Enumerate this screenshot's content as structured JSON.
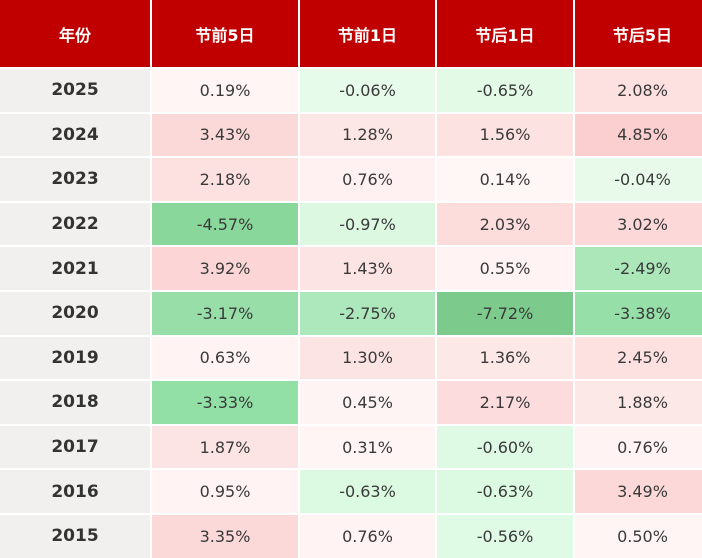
{
  "table": {
    "headers": [
      "年份",
      "节前5日",
      "节前1日",
      "节后1日",
      "节后5日"
    ],
    "rows": [
      {
        "year": "2025",
        "values": [
          "0.19%",
          "-0.06%",
          "-0.65%",
          "2.08%"
        ],
        "colors": [
          "#fff5f5",
          "#e6fbe9",
          "#e3fae7",
          "#fde0e0"
        ]
      },
      {
        "year": "2024",
        "values": [
          "3.43%",
          "1.28%",
          "1.56%",
          "4.85%"
        ],
        "colors": [
          "#fcd9d9",
          "#fde6e6",
          "#fde2e2",
          "#fbcfcf"
        ]
      },
      {
        "year": "2023",
        "values": [
          "2.18%",
          "0.76%",
          "0.14%",
          "-0.04%"
        ],
        "colors": [
          "#fde0e0",
          "#fff1f1",
          "#fff6f6",
          "#e8fbeb"
        ]
      },
      {
        "year": "2022",
        "values": [
          "-4.57%",
          "-0.97%",
          "2.03%",
          "3.02%"
        ],
        "colors": [
          "#8ad79c",
          "#dcf8e1",
          "#fddcdc",
          "#fcd8d8"
        ]
      },
      {
        "year": "2021",
        "values": [
          "3.92%",
          "1.43%",
          "0.55%",
          "-2.49%"
        ],
        "colors": [
          "#fcd6d6",
          "#fde4e4",
          "#fff3f3",
          "#ace7b9"
        ]
      },
      {
        "year": "2020",
        "values": [
          "-3.17%",
          "-2.75%",
          "-7.72%",
          "-3.38%"
        ],
        "colors": [
          "#98dea9",
          "#ace8bb",
          "#7ccb8d",
          "#96dfa8"
        ]
      },
      {
        "year": "2019",
        "values": [
          "0.63%",
          "1.30%",
          "1.36%",
          "2.45%"
        ],
        "colors": [
          "#fff3f3",
          "#fde4e4",
          "#fde8e8",
          "#fde0e0"
        ]
      },
      {
        "year": "2018",
        "values": [
          "-3.33%",
          "0.45%",
          "2.17%",
          "1.88%"
        ],
        "colors": [
          "#92e0a6",
          "#fff4f4",
          "#fcdcdc",
          "#fde8e8"
        ]
      },
      {
        "year": "2017",
        "values": [
          "1.87%",
          "0.31%",
          "-0.60%",
          "0.76%"
        ],
        "colors": [
          "#fde4e4",
          "#fff5f5",
          "#defae4",
          "#fff3f3"
        ]
      },
      {
        "year": "2016",
        "values": [
          "0.95%",
          "-0.63%",
          "-0.63%",
          "3.49%"
        ],
        "colors": [
          "#fff3f3",
          "#dcfae2",
          "#dcfae2",
          "#fcd8d8"
        ]
      },
      {
        "year": "2015",
        "values": [
          "3.35%",
          "0.76%",
          "-0.56%",
          "0.50%"
        ],
        "colors": [
          "#fcd9d9",
          "#fff3f3",
          "#dffae5",
          "#fff5f5"
        ]
      }
    ]
  },
  "colors": {
    "header_bg": "#c00000",
    "header_text": "#ffffff",
    "year_bg": "#f1f0ef"
  }
}
